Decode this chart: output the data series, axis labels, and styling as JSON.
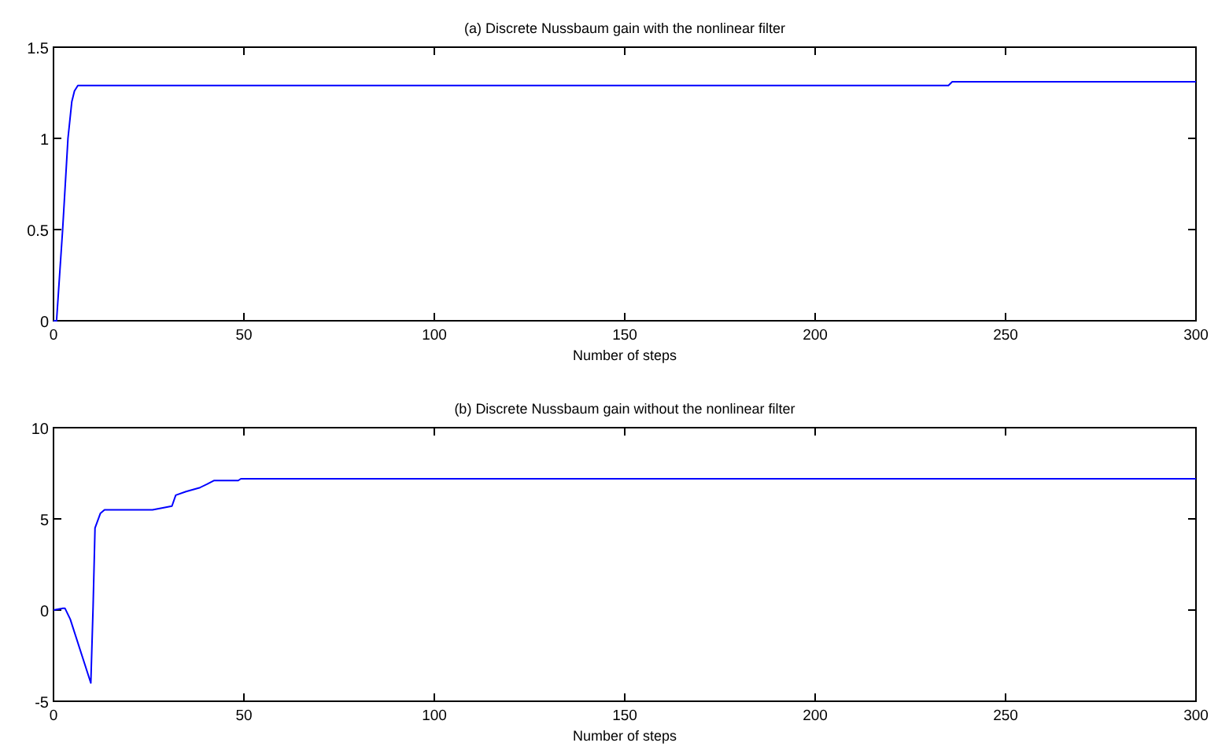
{
  "chart_data": [
    {
      "type": "line",
      "title": "(a)  Discrete Nussbaum gain with the nonlinear filter",
      "xlabel": "Number of steps",
      "xlim": [
        0,
        300
      ],
      "xticks": [
        0,
        50,
        100,
        150,
        200,
        250,
        300
      ],
      "ylim": [
        0,
        1.5
      ],
      "yticks": [
        0,
        0.5,
        1,
        1.5
      ],
      "series": [
        {
          "color": "#0000ff",
          "x": [
            0,
            0.8,
            2.4,
            3.8,
            4.8,
            5.5,
            6.4,
            100,
            200,
            235,
            236,
            300
          ],
          "values": [
            0,
            0,
            0.5,
            1.0,
            1.2,
            1.26,
            1.29,
            1.29,
            1.29,
            1.29,
            1.31,
            1.31
          ]
        }
      ]
    },
    {
      "type": "line",
      "title": "(b)  Discrete Nussbaum gain without the nonlinear filter",
      "xlabel": "Number of steps",
      "xlim": [
        0,
        300
      ],
      "xticks": [
        0,
        50,
        100,
        150,
        200,
        250,
        300
      ],
      "ylim": [
        -5,
        10
      ],
      "yticks": [
        -5,
        0,
        5,
        10
      ],
      "series": [
        {
          "color": "#0000ff",
          "x": [
            0,
            2.5,
            3,
            4.4,
            9.8,
            10.4,
            10.9,
            12.3,
            13.4,
            26,
            28.7,
            31.1,
            32.1,
            34.8,
            38.3,
            40.3,
            42.1,
            48.5,
            49.2,
            300
          ],
          "values": [
            0,
            0.1,
            0.1,
            -0.5,
            -4,
            0.2,
            4.5,
            5.3,
            5.5,
            5.5,
            5.6,
            5.7,
            6.3,
            6.5,
            6.7,
            6.9,
            7.1,
            7.1,
            7.2,
            7.2
          ]
        }
      ]
    }
  ]
}
